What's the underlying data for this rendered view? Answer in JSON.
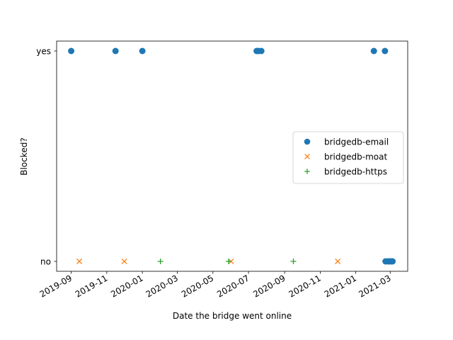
{
  "chart_data": {
    "type": "scatter",
    "xlabel": "Date the bridge went online",
    "ylabel": "Blocked?",
    "x_range": [
      "2019-08-07",
      "2021-03-31"
    ],
    "x_ticks": [
      "2019-09",
      "2019-11",
      "2020-01",
      "2020-03",
      "2020-05",
      "2020-07",
      "2020-09",
      "2020-11",
      "2021-01",
      "2021-03"
    ],
    "y_ticks": [
      "no",
      "yes"
    ],
    "grid": false,
    "legend_position": "center-right",
    "series": [
      {
        "name": "bridgedb-email",
        "marker": "circle",
        "color": "#1f77b4",
        "points": [
          {
            "x": "2019-09-01",
            "y": "yes"
          },
          {
            "x": "2019-11-16",
            "y": "yes"
          },
          {
            "x": "2020-01-01",
            "y": "yes"
          },
          {
            "x": "2020-07-15",
            "y": "yes"
          },
          {
            "x": "2020-07-18",
            "y": "yes"
          },
          {
            "x": "2020-07-23",
            "y": "yes"
          },
          {
            "x": "2021-02-01",
            "y": "yes"
          },
          {
            "x": "2021-02-20",
            "y": "yes"
          },
          {
            "x": "2021-02-21",
            "y": "no"
          },
          {
            "x": "2021-02-25",
            "y": "no"
          },
          {
            "x": "2021-02-28",
            "y": "no"
          },
          {
            "x": "2021-03-03",
            "y": "no"
          },
          {
            "x": "2021-03-05",
            "y": "no"
          }
        ]
      },
      {
        "name": "bridgedb-moat",
        "marker": "x",
        "color": "#ff7f0e",
        "points": [
          {
            "x": "2019-09-15",
            "y": "no"
          },
          {
            "x": "2019-12-01",
            "y": "no"
          },
          {
            "x": "2020-06-01",
            "y": "no"
          },
          {
            "x": "2020-12-01",
            "y": "no"
          }
        ]
      },
      {
        "name": "bridgedb-https",
        "marker": "plus",
        "color": "#2ca02c",
        "points": [
          {
            "x": "2020-02-01",
            "y": "no"
          },
          {
            "x": "2020-05-28",
            "y": "no"
          },
          {
            "x": "2020-09-16",
            "y": "no"
          }
        ]
      }
    ]
  }
}
